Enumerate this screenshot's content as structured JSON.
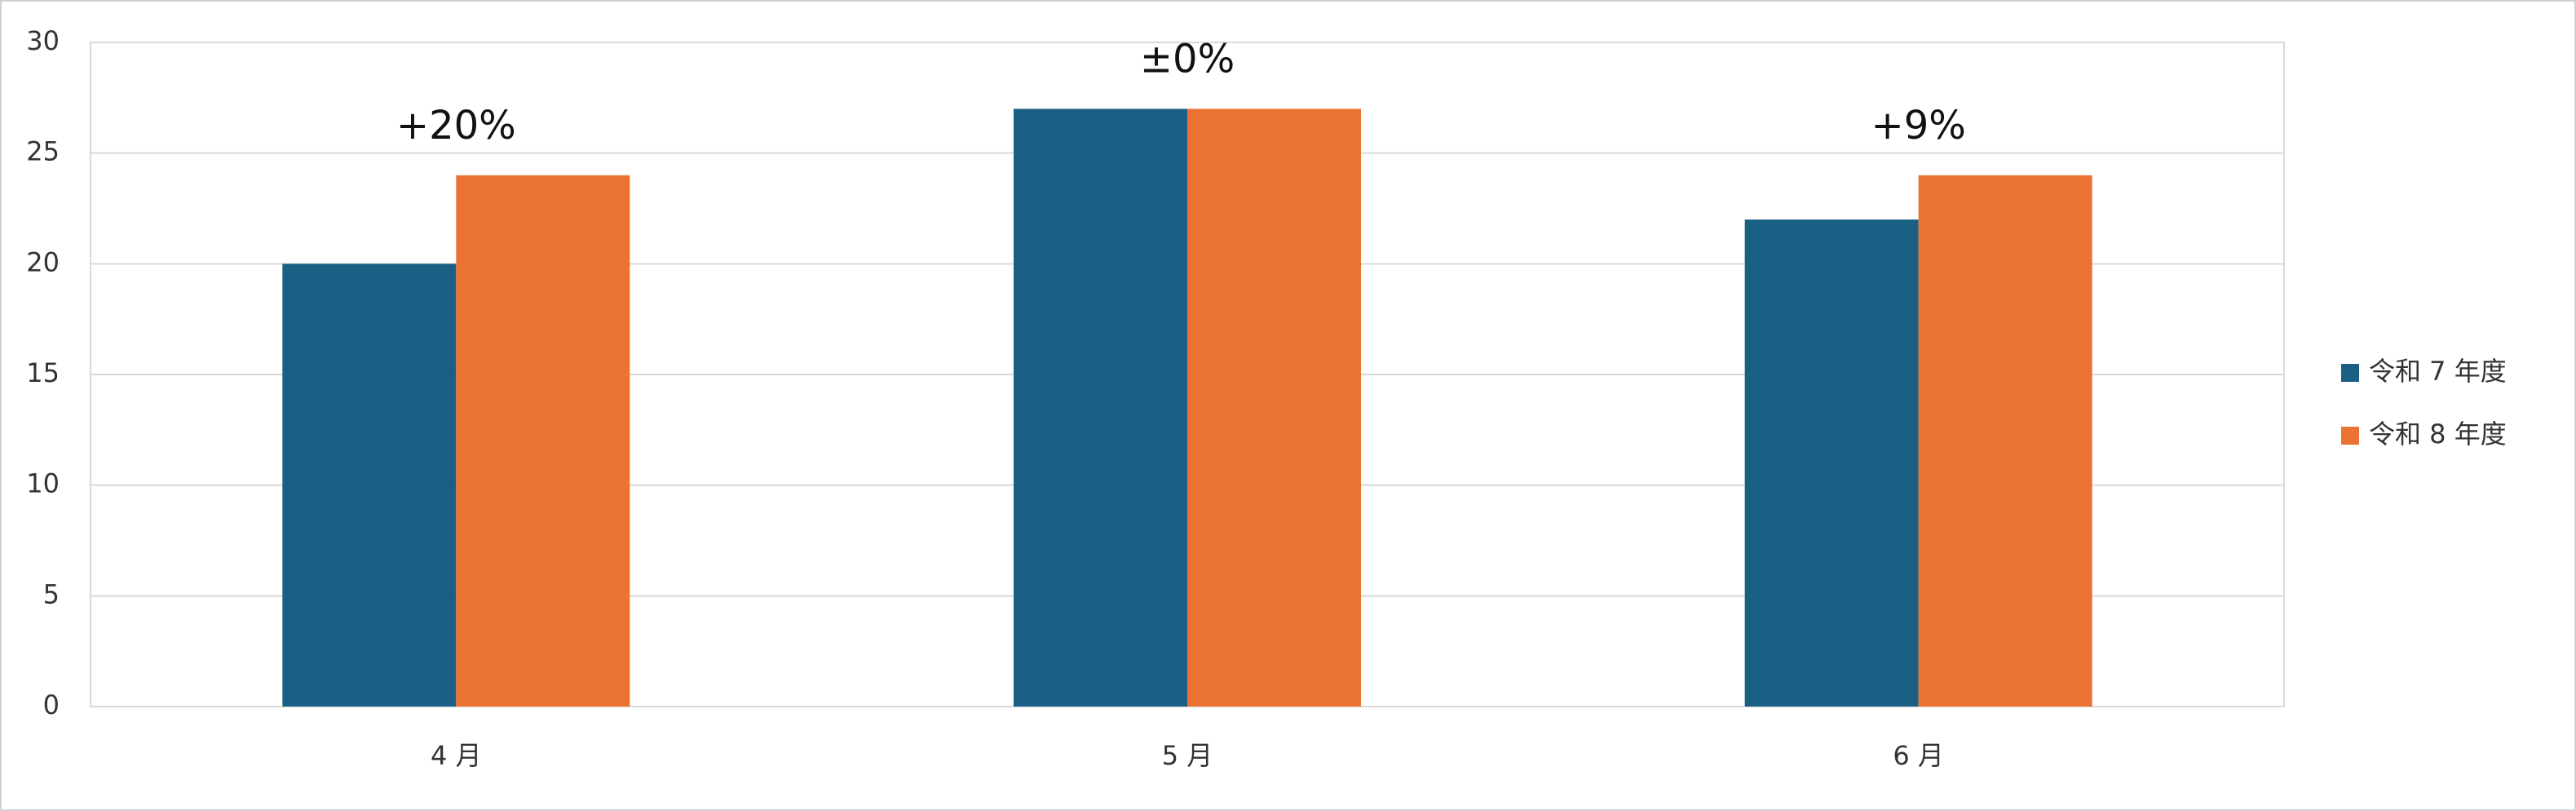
{
  "chart_data": {
    "type": "bar",
    "categories": [
      "4 月",
      "5 月",
      "6 月"
    ],
    "series": [
      {
        "name": "令和 7 年度",
        "color": "#1a6084",
        "values": [
          20,
          27,
          22
        ]
      },
      {
        "name": "令和 8 年度",
        "color": "#ea7233",
        "values": [
          24,
          27,
          24
        ]
      }
    ],
    "annotations": [
      "+20%",
      "±0%",
      "+9%"
    ],
    "ylim": [
      0,
      30
    ],
    "yticks": [
      0,
      5,
      10,
      15,
      20,
      25,
      30
    ],
    "grid": true,
    "legend": "right"
  }
}
